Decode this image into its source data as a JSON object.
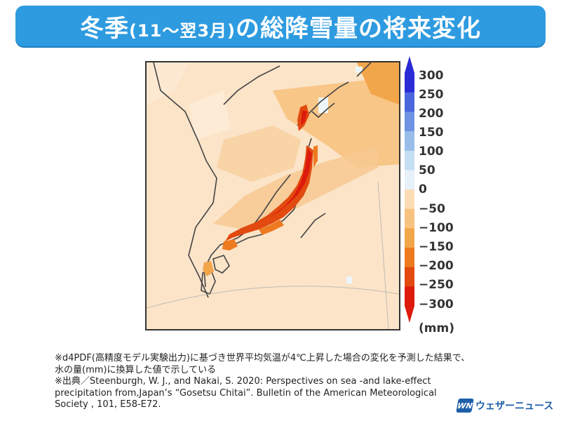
{
  "header": {
    "title_main_1": "冬季",
    "title_sub": "(11〜翌3月)",
    "title_main_2": "の総降雪量の将来変化"
  },
  "colorbar": {
    "labels": [
      "300",
      "250",
      "200",
      "150",
      "100",
      "50",
      "0",
      "−50",
      "−100",
      "−150",
      "−200",
      "−250",
      "−300"
    ],
    "unit": "(mm)",
    "colors": [
      "#2b2bd6",
      "#4a66dd",
      "#6f93e3",
      "#98bde9",
      "#c4def2",
      "#e6f1fa",
      "#fdf0de",
      "#fbdcb4",
      "#f7c27e",
      "#f2a64a",
      "#ee7a20",
      "#e24a10",
      "#dd1a0c"
    ]
  },
  "map": {
    "background_color": "#fbe2c6",
    "increase_color": "#eef6fb",
    "decrease_strong_color": "#e8240e"
  },
  "notes": {
    "line1": "※d4PDF(高精度モデル実験出力)に基づき世界平均気温が4℃上昇した場合の変化を予測した結果で、",
    "line2": "水の量(mm)に換算した値で示している",
    "line3": "※出典／Steenburgh, W. J., and Nakai, S. 2020: Perspectives on sea -and lake-effect",
    "line4": "precipitation from,Japan’s “Gosetsu Chitai”. Bulletin of the American Meteorological",
    "line5": "Society , 101, E58-E72."
  },
  "logo": {
    "mark": "WN",
    "text": "ウェザーニュース"
  }
}
